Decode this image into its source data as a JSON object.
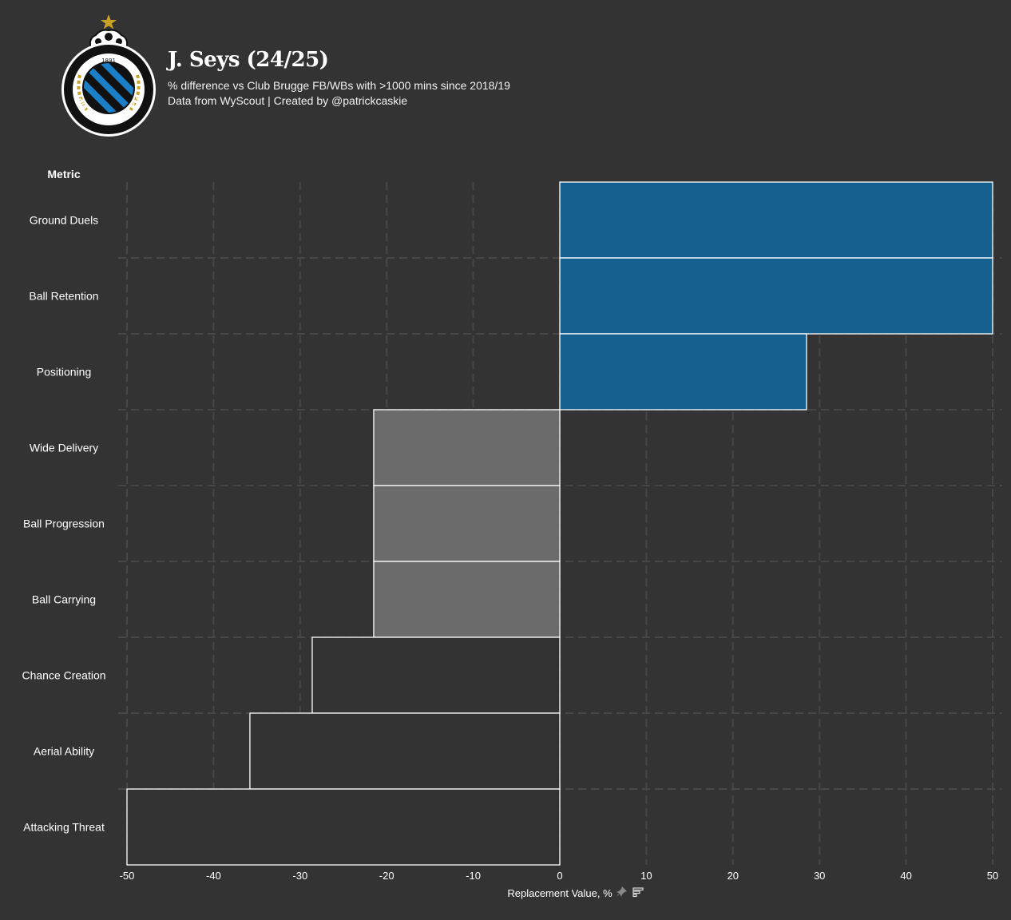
{
  "header": {
    "title": "J. Seys (24/25)",
    "subtitle_line1": "% difference vs Club Brugge FB/WBs with >1000 mins since 2018/19",
    "subtitle_line2": "Data from WyScout | Created by @patrickcaskie"
  },
  "logo": {
    "text_arc": "CLUB BRUGGE KV",
    "year": "1891"
  },
  "colors": {
    "background": "#333333",
    "positive": "#15608f",
    "mid": "#6b6b6b",
    "low": "#333333",
    "grid": "#474747",
    "star": "#c9a227"
  },
  "chart_data": {
    "type": "bar",
    "orientation": "horizontal",
    "category_header": "Metric",
    "categories": [
      "Ground Duels",
      "Ball Retention",
      "Positioning",
      "Wide Delivery",
      "Ball Progression",
      "Ball Carrying",
      "Chance Creation",
      "Aerial Ability",
      "Attacking Threat"
    ],
    "values": [
      50,
      50,
      28.5,
      -21.5,
      -21.5,
      -21.5,
      -28.6,
      -35.8,
      -50
    ],
    "fill_groups": [
      "positive",
      "positive",
      "positive",
      "mid",
      "mid",
      "mid",
      "low",
      "low",
      "low"
    ],
    "xlabel": "Replacement Value, %",
    "xlim": [
      -50,
      50
    ],
    "xticks": [
      -50,
      -40,
      -30,
      -20,
      -10,
      0,
      10,
      20,
      30,
      40,
      50
    ],
    "grid": true
  }
}
